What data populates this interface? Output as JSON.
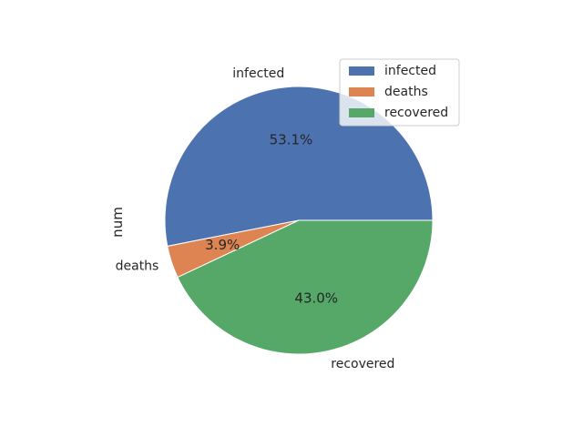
{
  "chart_data": {
    "type": "pie",
    "ylabel": "num",
    "categories": [
      "infected",
      "deaths",
      "recovered"
    ],
    "percentages": [
      "53.1%",
      "3.9%",
      "43.0%"
    ],
    "values": [
      53.1,
      3.9,
      43.0
    ],
    "colors": [
      "#4c72b0",
      "#dd8452",
      "#55a868"
    ],
    "start_angle_deg": 0,
    "direction": "counterclockwise",
    "legend": {
      "placement": "top-right",
      "entries": [
        "infected",
        "deaths",
        "recovered"
      ]
    }
  }
}
